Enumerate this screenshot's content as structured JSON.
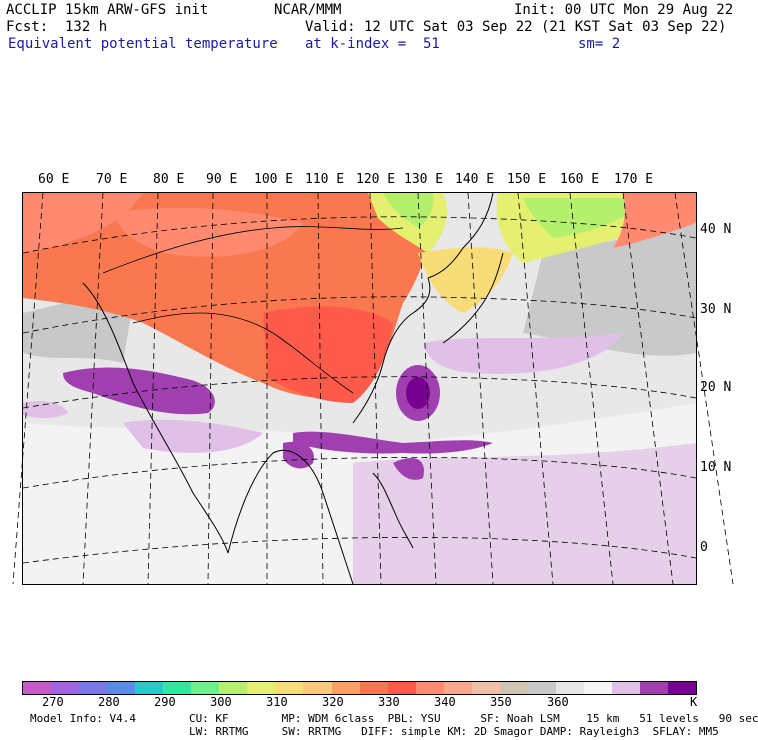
{
  "header": {
    "model": "ACCLIP 15km ARW-GFS init",
    "center": "NCAR/MMM",
    "init": "Init: 00 UTC Mon 29 Aug 22",
    "forecast": "Fcst:  132 h",
    "valid": "Valid: 12 UTC Sat 03 Sep 22 (21 KST Sat 03 Sep 22)",
    "field": "Equivalent potential temperature",
    "level": "at k-index =  51",
    "smoothing": "sm= 2"
  },
  "map": {
    "lon_labels": [
      "60 E",
      "70 E",
      "80 E",
      "90 E",
      "100 E",
      "110 E",
      "120 E",
      "130 E",
      "140 E",
      "150 E",
      "160 E",
      "170 E"
    ],
    "lat_labels": [
      "40 N",
      "30 N",
      "20 N",
      "10 N",
      "0"
    ]
  },
  "colorbar": {
    "colors": [
      "#c85ac8",
      "#a064dc",
      "#7a78e6",
      "#5a8ce6",
      "#28c8c8",
      "#32e6a0",
      "#6ef08c",
      "#b4f06e",
      "#e6f070",
      "#f8dc78",
      "#fac87a",
      "#faa064",
      "#fa7850",
      "#ff5a4a",
      "#ff8a70",
      "#f8a88c",
      "#f0c0a8",
      "#d2c2b4",
      "#c8c8c8",
      "#e6e6e6",
      "#f5f5f5",
      "#e0c0e6",
      "#a040b0",
      "#780090"
    ],
    "labels": [
      "270",
      "280",
      "290",
      "300",
      "310",
      "320",
      "330",
      "340",
      "350",
      "360"
    ],
    "unit": "K"
  },
  "model_info": {
    "line1": "Model Info: V4.4        CU: KF        MP: WDM 6class  PBL: YSU      SF: Noah LSM    15 km   51 levels   90 sec",
    "line2": "                        LW: RRTMG     SW: RRTMG   DIFF: simple KM: 2D Smagor DAMP: Rayleigh3  SFLAY: MM5"
  }
}
